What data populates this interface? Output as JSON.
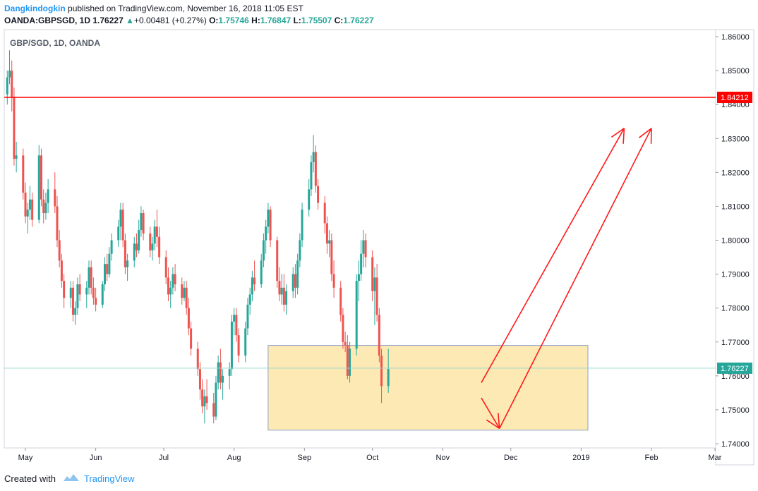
{
  "header": {
    "author": "Dangkindogkin",
    "published": "published on TradingView.com, November 16, 2018 11:05 EST",
    "symbol": "OANDA:GBPSGD, 1D",
    "last": "1.76227",
    "change_arrow": "▲",
    "change": "+0.00481 (+0.27%)",
    "o_label": "O:",
    "o_value": "1.75746",
    "h_label": "H:",
    "h_value": "1.76847",
    "l_label": "L:",
    "l_value": "1.75507",
    "c_label": "C:",
    "c_value": "1.76227"
  },
  "footer": {
    "created_with": "Created with",
    "brand": "TradingView"
  },
  "colors": {
    "up": "#26a69a",
    "down": "#ef5350",
    "resistance": "#ff0000",
    "zone_fill": "#fde9b4",
    "zone_stroke": "#8aa0c8"
  },
  "chart_data": {
    "type": "candlestick",
    "title": "GBP/SGD, 1D, OANDA",
    "ylim": [
      1.7375,
      1.8615
    ],
    "y_ticks": [
      "1.86000",
      "1.85000",
      "1.84000",
      "1.83000",
      "1.82000",
      "1.81000",
      "1.80000",
      "1.79000",
      "1.78000",
      "1.77000",
      "1.76000",
      "1.75000",
      "1.74000"
    ],
    "y_tick_values": [
      1.86,
      1.85,
      1.84,
      1.83,
      1.82,
      1.81,
      1.8,
      1.79,
      1.78,
      1.77,
      1.76,
      1.75,
      1.74
    ],
    "x_ticks": [
      "May",
      "Jun",
      "Jul",
      "Aug",
      "Sep",
      "Oct",
      "Nov",
      "Dec",
      "2019",
      "Feb",
      "Mar"
    ],
    "x_tick_dates": [
      "2018-05-01",
      "2018-06-01",
      "2018-07-01",
      "2018-08-01",
      "2018-09-01",
      "2018-10-01",
      "2018-11-01",
      "2018-12-01",
      "2019-01-01",
      "2019-02-01",
      "2019-03-01"
    ],
    "resistance_level": 1.84212,
    "resistance_label": "1.84212",
    "last_price": 1.76227,
    "last_price_label": "1.76227",
    "support_zone": {
      "from": "2018-08-16",
      "to": "2019-01-04",
      "low": 1.744,
      "high": 1.769
    },
    "arrows": [
      {
        "from_date": "2018-11-18",
        "from_price": 1.7535,
        "to_date": "2018-11-26",
        "to_price": 1.7445
      },
      {
        "from_date": "2018-11-18",
        "from_price": 1.758,
        "to_date": "2019-01-20",
        "to_price": 1.833
      },
      {
        "from_date": "2018-11-26",
        "from_price": 1.7445,
        "to_date": "2019-02-01",
        "to_price": 1.833
      }
    ],
    "series": [
      {
        "name": "GBP/SGD",
        "start_date": "2018-04-23",
        "ohlc": [
          [
            1.843,
            1.85,
            1.84,
            1.848
          ],
          [
            1.848,
            1.856,
            1.846,
            1.85
          ],
          [
            1.85,
            1.853,
            1.838,
            1.842
          ],
          [
            1.842,
            1.845,
            1.822,
            1.824
          ],
          [
            1.824,
            1.829,
            1.82,
            1.825
          ],
          [
            1.825,
            1.827,
            1.812,
            1.814
          ],
          [
            1.814,
            1.817,
            1.805,
            1.807
          ],
          [
            1.807,
            1.811,
            1.802,
            1.809
          ],
          [
            1.809,
            1.816,
            1.806,
            1.812
          ],
          [
            1.812,
            1.814,
            1.804,
            1.806
          ],
          [
            1.806,
            1.828,
            1.805,
            1.825
          ],
          [
            1.825,
            1.827,
            1.81,
            1.812
          ],
          [
            1.812,
            1.815,
            1.805,
            1.808
          ],
          [
            1.808,
            1.814,
            1.806,
            1.811
          ],
          [
            1.811,
            1.818,
            1.808,
            1.815
          ],
          [
            1.815,
            1.82,
            1.808,
            1.81
          ],
          [
            1.81,
            1.813,
            1.798,
            1.8
          ],
          [
            1.8,
            1.803,
            1.792,
            1.794
          ],
          [
            1.794,
            1.796,
            1.786,
            1.788
          ],
          [
            1.788,
            1.79,
            1.78,
            1.783
          ],
          [
            1.783,
            1.788,
            1.78,
            1.786
          ],
          [
            1.786,
            1.788,
            1.776,
            1.778
          ],
          [
            1.778,
            1.782,
            1.775,
            1.78
          ],
          [
            1.78,
            1.789,
            1.778,
            1.787
          ],
          [
            1.787,
            1.79,
            1.782,
            1.784
          ],
          [
            1.784,
            1.788,
            1.78,
            1.786
          ],
          [
            1.786,
            1.794,
            1.784,
            1.792
          ],
          [
            1.792,
            1.794,
            1.784,
            1.786
          ],
          [
            1.786,
            1.789,
            1.781,
            1.783
          ],
          [
            1.783,
            1.786,
            1.779,
            1.781
          ],
          [
            1.781,
            1.788,
            1.78,
            1.787
          ],
          [
            1.787,
            1.795,
            1.785,
            1.793
          ],
          [
            1.793,
            1.796,
            1.788,
            1.79
          ],
          [
            1.79,
            1.798,
            1.789,
            1.796
          ],
          [
            1.796,
            1.802,
            1.794,
            1.8
          ],
          [
            1.8,
            1.806,
            1.798,
            1.804
          ],
          [
            1.804,
            1.811,
            1.8,
            1.809
          ],
          [
            1.809,
            1.811,
            1.798,
            1.8
          ],
          [
            1.8,
            1.802,
            1.79,
            1.792
          ],
          [
            1.792,
            1.796,
            1.788,
            1.794
          ],
          [
            1.794,
            1.801,
            1.792,
            1.799
          ],
          [
            1.799,
            1.802,
            1.795,
            1.797
          ],
          [
            1.797,
            1.806,
            1.796,
            1.803
          ],
          [
            1.803,
            1.81,
            1.801,
            1.808
          ],
          [
            1.808,
            1.809,
            1.8,
            1.802
          ],
          [
            1.802,
            1.804,
            1.795,
            1.797
          ],
          [
            1.797,
            1.801,
            1.794,
            1.799
          ],
          [
            1.799,
            1.806,
            1.797,
            1.804
          ],
          [
            1.804,
            1.809,
            1.798,
            1.801
          ],
          [
            1.801,
            1.804,
            1.793,
            1.795
          ],
          [
            1.795,
            1.797,
            1.787,
            1.789
          ],
          [
            1.789,
            1.792,
            1.782,
            1.784
          ],
          [
            1.784,
            1.788,
            1.78,
            1.786
          ],
          [
            1.786,
            1.792,
            1.784,
            1.79
          ],
          [
            1.79,
            1.793,
            1.785,
            1.787
          ],
          [
            1.787,
            1.789,
            1.781,
            1.783
          ],
          [
            1.783,
            1.788,
            1.782,
            1.786
          ],
          [
            1.786,
            1.788,
            1.778,
            1.78
          ],
          [
            1.78,
            1.783,
            1.772,
            1.774
          ],
          [
            1.774,
            1.776,
            1.766,
            1.768
          ],
          [
            1.768,
            1.77,
            1.76,
            1.762
          ],
          [
            1.762,
            1.764,
            1.753,
            1.756
          ],
          [
            1.756,
            1.759,
            1.749,
            1.751
          ],
          [
            1.751,
            1.756,
            1.746,
            1.754
          ],
          [
            1.754,
            1.759,
            1.75,
            1.752
          ],
          [
            1.752,
            1.755,
            1.746,
            1.748
          ],
          [
            1.748,
            1.76,
            1.747,
            1.758
          ],
          [
            1.758,
            1.766,
            1.756,
            1.764
          ],
          [
            1.764,
            1.768,
            1.756,
            1.758
          ],
          [
            1.758,
            1.762,
            1.753,
            1.76
          ],
          [
            1.76,
            1.764,
            1.756,
            1.762
          ],
          [
            1.762,
            1.778,
            1.76,
            1.776
          ],
          [
            1.776,
            1.78,
            1.772,
            1.778
          ],
          [
            1.778,
            1.78,
            1.77,
            1.772
          ],
          [
            1.772,
            1.774,
            1.764,
            1.766
          ],
          [
            1.766,
            1.776,
            1.764,
            1.774
          ],
          [
            1.774,
            1.783,
            1.772,
            1.781
          ],
          [
            1.781,
            1.786,
            1.778,
            1.784
          ],
          [
            1.784,
            1.791,
            1.782,
            1.789
          ],
          [
            1.789,
            1.794,
            1.785,
            1.787
          ],
          [
            1.787,
            1.796,
            1.786,
            1.794
          ],
          [
            1.794,
            1.802,
            1.792,
            1.8
          ],
          [
            1.8,
            1.806,
            1.796,
            1.804
          ],
          [
            1.804,
            1.811,
            1.802,
            1.809
          ],
          [
            1.809,
            1.81,
            1.798,
            1.8
          ],
          [
            1.8,
            1.801,
            1.786,
            1.788
          ],
          [
            1.788,
            1.792,
            1.782,
            1.784
          ],
          [
            1.784,
            1.79,
            1.781,
            1.786
          ],
          [
            1.786,
            1.79,
            1.779,
            1.781
          ],
          [
            1.781,
            1.787,
            1.778,
            1.785
          ],
          [
            1.785,
            1.792,
            1.783,
            1.79
          ],
          [
            1.79,
            1.793,
            1.783,
            1.786
          ],
          [
            1.786,
            1.796,
            1.784,
            1.794
          ],
          [
            1.794,
            1.802,
            1.792,
            1.8
          ],
          [
            1.8,
            1.811,
            1.798,
            1.809
          ],
          [
            1.809,
            1.818,
            1.807,
            1.815
          ],
          [
            1.815,
            1.825,
            1.813,
            1.823
          ],
          [
            1.823,
            1.831,
            1.82,
            1.826
          ],
          [
            1.826,
            1.828,
            1.814,
            1.816
          ],
          [
            1.816,
            1.818,
            1.809,
            1.811
          ],
          [
            1.811,
            1.813,
            1.802,
            1.805
          ],
          [
            1.805,
            1.807,
            1.796,
            1.799
          ],
          [
            1.799,
            1.803,
            1.795,
            1.8
          ],
          [
            1.8,
            1.802,
            1.788,
            1.79
          ],
          [
            1.79,
            1.794,
            1.783,
            1.786
          ],
          [
            1.786,
            1.788,
            1.776,
            1.778
          ],
          [
            1.778,
            1.78,
            1.768,
            1.77
          ],
          [
            1.77,
            1.773,
            1.767,
            1.769
          ],
          [
            1.769,
            1.772,
            1.759,
            1.76
          ],
          [
            1.76,
            1.77,
            1.758,
            1.768
          ],
          [
            1.768,
            1.79,
            1.766,
            1.788
          ],
          [
            1.788,
            1.794,
            1.782,
            1.79
          ],
          [
            1.79,
            1.8,
            1.788,
            1.796
          ],
          [
            1.796,
            1.803,
            1.792,
            1.8
          ],
          [
            1.8,
            1.802,
            1.792,
            1.795
          ],
          [
            1.795,
            1.797,
            1.782,
            1.785
          ],
          [
            1.785,
            1.792,
            1.775,
            1.789
          ],
          [
            1.789,
            1.793,
            1.776,
            1.778
          ],
          [
            1.778,
            1.78,
            1.764,
            1.766
          ],
          [
            1.766,
            1.768,
            1.752,
            1.757
          ],
          [
            1.757,
            1.768,
            1.755,
            1.762
          ]
        ]
      }
    ]
  }
}
